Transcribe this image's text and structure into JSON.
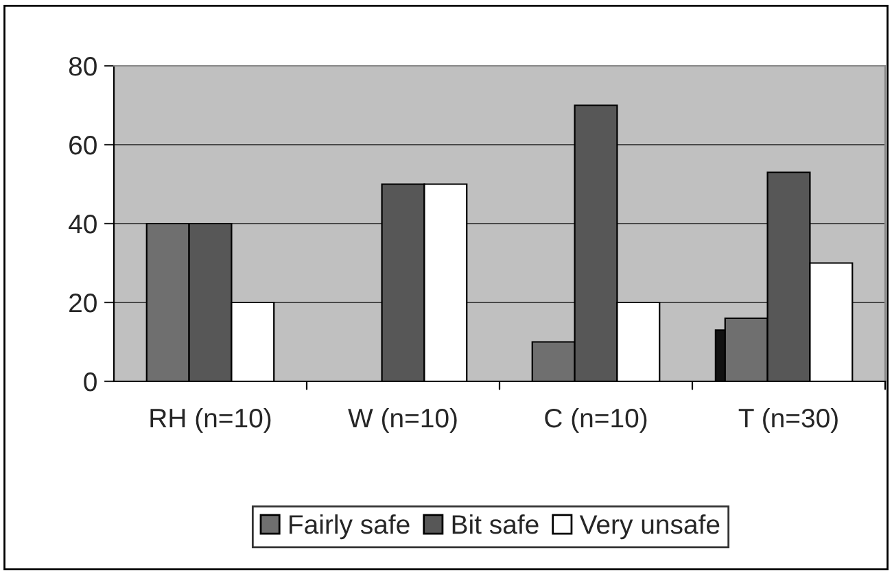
{
  "chart_data": {
    "type": "bar",
    "categories": [
      "RH (n=10)",
      "W (n=10)",
      "C (n=10)",
      "T (n=30)"
    ],
    "series": [
      {
        "color": "#111111",
        "values": [
          null,
          null,
          null,
          13
        ]
      },
      {
        "name": "Fairly safe",
        "color": "#6f6f6f",
        "values": [
          40,
          null,
          10,
          16
        ]
      },
      {
        "name": "Bit safe",
        "color": "#575757",
        "values": [
          40,
          50,
          70,
          53
        ]
      },
      {
        "name": "Very unsafe",
        "color": "#ffffff",
        "values": [
          20,
          50,
          20,
          30
        ]
      }
    ],
    "ylim": [
      0,
      80
    ],
    "yticks": [
      0,
      20,
      40,
      60,
      80
    ],
    "grid": "y",
    "legend": "bottom"
  }
}
